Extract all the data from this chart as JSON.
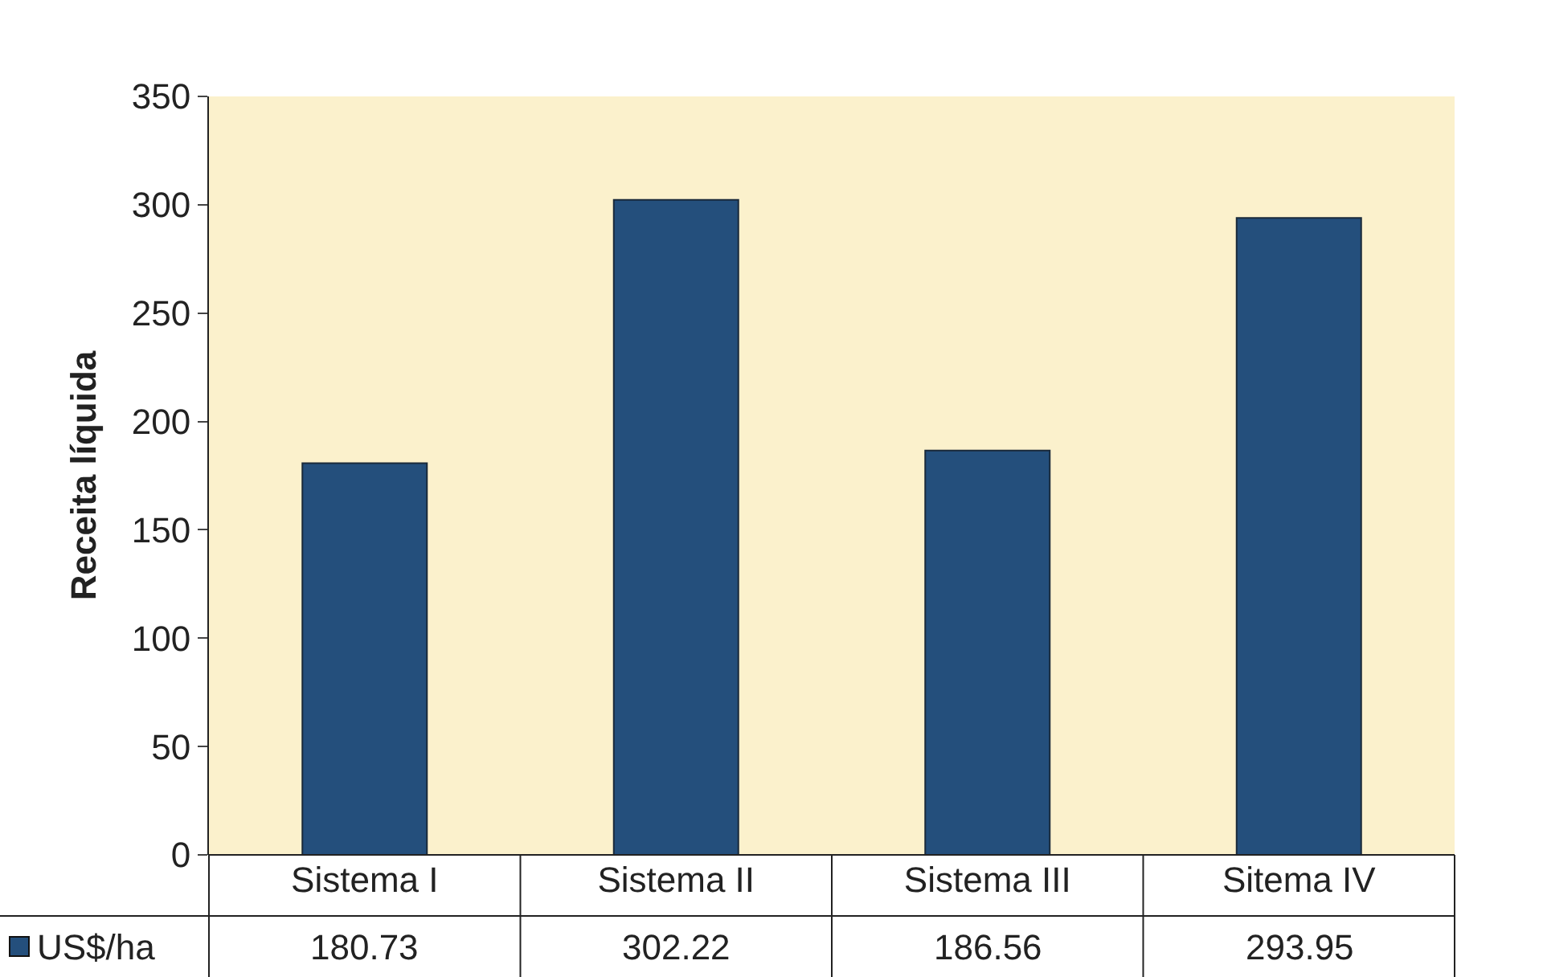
{
  "chart_data": {
    "type": "bar",
    "ylabel": "Receita líquida",
    "categories": [
      "Sistema I",
      "Sistema II",
      "Sistema III",
      "Sitema IV"
    ],
    "series": [
      {
        "name": "US$/ha",
        "color": "#244f7c",
        "values": [
          180.73,
          302.22,
          186.56,
          293.95
        ]
      }
    ],
    "ylim": [
      0,
      350
    ],
    "yticks": [
      0,
      50,
      100,
      150,
      200,
      250,
      300,
      350
    ],
    "grid": false,
    "data_labels": true
  }
}
